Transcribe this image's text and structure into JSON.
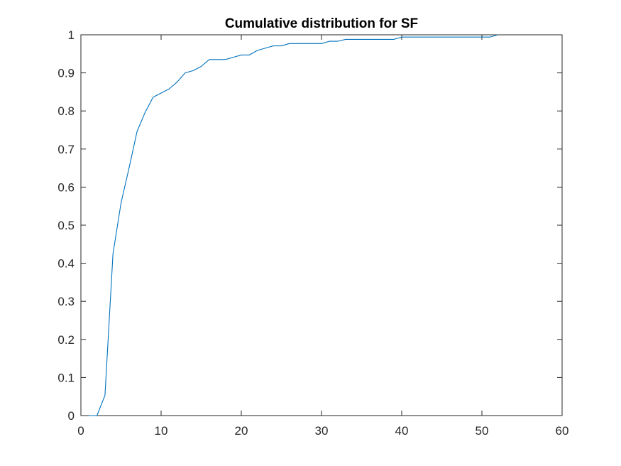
{
  "chart_data": {
    "type": "line",
    "title": "Cumulative distribution for SF",
    "xlabel": "",
    "ylabel": "",
    "xlim": [
      0,
      60
    ],
    "ylim": [
      0,
      1
    ],
    "x_ticks": [
      0,
      10,
      20,
      30,
      40,
      50,
      60
    ],
    "y_ticks": [
      0,
      0.1,
      0.2,
      0.3,
      0.4,
      0.5,
      0.6,
      0.7,
      0.8,
      0.9,
      1
    ],
    "x_tick_labels": [
      "0",
      "10",
      "20",
      "30",
      "40",
      "50",
      "60"
    ],
    "y_tick_labels": [
      "0",
      "0.1",
      "0.2",
      "0.3",
      "0.4",
      "0.5",
      "0.6",
      "0.7",
      "0.8",
      "0.9",
      "1"
    ],
    "grid": false,
    "series": [
      {
        "color": "#0072BD",
        "x": [
          1,
          2,
          3,
          4,
          5,
          6,
          7,
          8,
          9,
          10,
          11,
          12,
          13,
          14,
          15,
          16,
          17,
          18,
          19,
          20,
          21,
          22,
          23,
          24,
          25,
          26,
          27,
          28,
          29,
          30,
          31,
          32,
          33,
          34,
          35,
          36,
          37,
          38,
          39,
          40,
          41,
          42,
          43,
          44,
          45,
          46,
          47,
          48,
          49,
          50,
          51,
          52
        ],
        "y": [
          0,
          0,
          0.053,
          0.425,
          0.558,
          0.65,
          0.746,
          0.796,
          0.836,
          0.847,
          0.858,
          0.876,
          0.9,
          0.906,
          0.917,
          0.935,
          0.935,
          0.935,
          0.941,
          0.947,
          0.947,
          0.959,
          0.965,
          0.971,
          0.971,
          0.977,
          0.977,
          0.977,
          0.977,
          0.977,
          0.983,
          0.983,
          0.988,
          0.988,
          0.988,
          0.988,
          0.988,
          0.988,
          0.988,
          0.994,
          0.994,
          0.994,
          0.994,
          0.994,
          0.994,
          0.994,
          0.994,
          0.994,
          0.994,
          0.994,
          0.994,
          1
        ]
      }
    ]
  }
}
